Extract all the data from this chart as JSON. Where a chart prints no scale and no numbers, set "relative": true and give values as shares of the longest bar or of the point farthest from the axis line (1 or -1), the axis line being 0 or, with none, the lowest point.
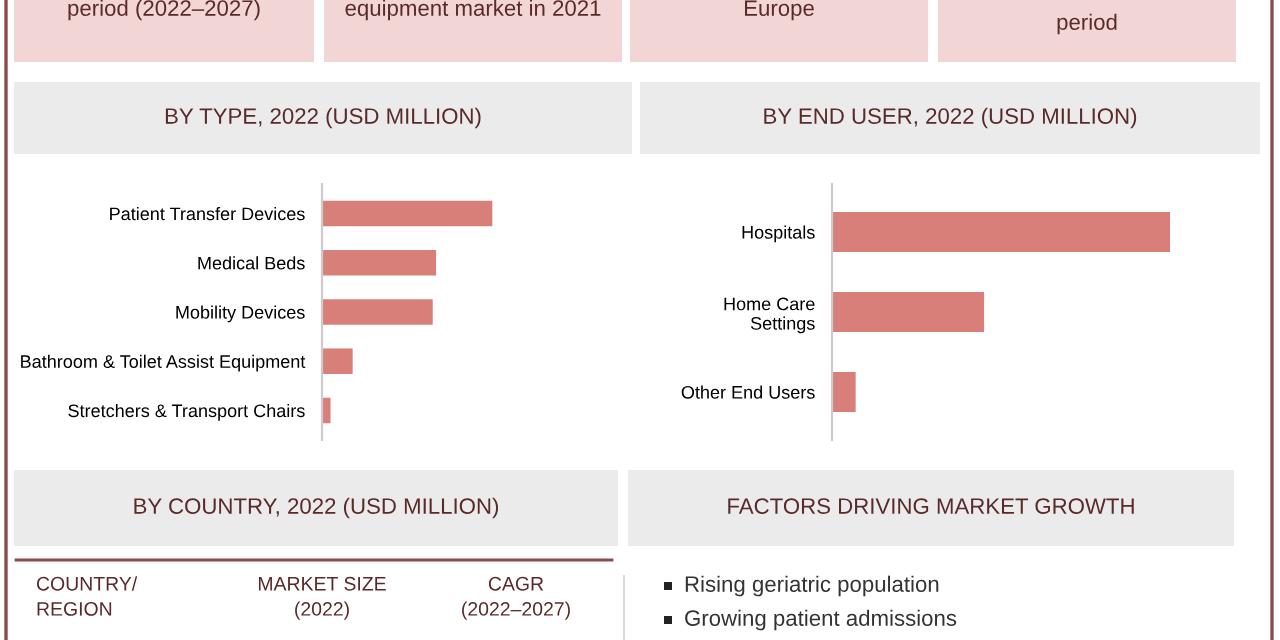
{
  "chart_data": [
    {
      "type": "other",
      "annotations": [
        "period (2022–2027)",
        "equipment market in 2021",
        "Europe",
        "period"
      ]
    },
    {
      "type": "bar",
      "title": "BY TYPE, 2022 (USD MILLION)",
      "orientation": "horizontal",
      "relative": true,
      "color": "#d97f7a",
      "categories": [
        "Patient Transfer Devices",
        "Medical Beds",
        "Mobility Devices",
        "Bathroom & Toilet Assist Equipment",
        "Stretchers & Transport Chairs"
      ],
      "values": [
        1,
        0.67,
        0.65,
        0.18,
        0.05
      ]
    },
    {
      "type": "bar",
      "title": "BY END USER, 2022 (USD MILLION)",
      "orientation": "horizontal",
      "relative": true,
      "color": "#d97f7a",
      "categories": [
        "Hospitals",
        "Home Care\nSettings",
        "Other End Users"
      ],
      "values": [
        1,
        0.45,
        0.07
      ]
    },
    {
      "type": "other",
      "title": "BY COUNTRY, 2022 (USD MILLION)",
      "annotations": [
        "COUNTRY/\nREGION",
        "MARKET SIZE\n(2022)",
        "CAGR\n(2022–2027)"
      ]
    },
    {
      "type": "other",
      "title": "FACTORS DRIVING MARKET GROWTH",
      "annotations": [
        "Rising geriatric population",
        "Growing patient admissions"
      ]
    }
  ]
}
